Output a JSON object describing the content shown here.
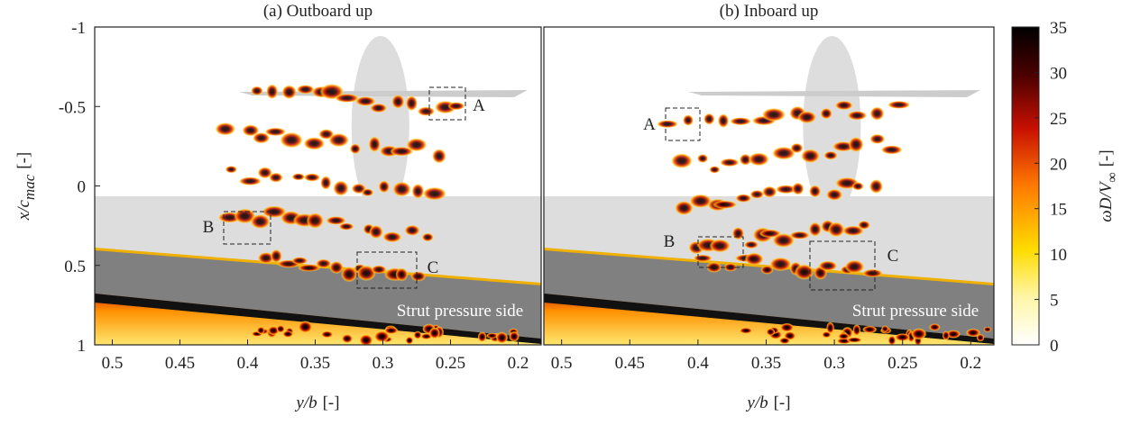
{
  "chart_data": [
    {
      "type": "field",
      "title": "(a) Outboard up",
      "xlim": [
        0.513,
        0.183
      ],
      "ylim": [
        -1,
        1
      ],
      "xticks": [
        0.5,
        0.45,
        0.4,
        0.35,
        0.3,
        0.25,
        0.2
      ],
      "yticks": [
        -1,
        -0.5,
        0,
        0.5,
        1
      ],
      "xlabel": "y/b",
      "xlabel_unit": "[-]",
      "ylabel": "x/c",
      "ylabel_sub": "mac",
      "ylabel_unit": "[-]",
      "annotations": [
        "A",
        "B",
        "C",
        "Strut pressure side"
      ]
    },
    {
      "type": "field",
      "title": "(b) Inboard up",
      "xlim": [
        0.513,
        0.183
      ],
      "ylim": [
        -1,
        1
      ],
      "xticks": [
        0.5,
        0.45,
        0.4,
        0.35,
        0.3,
        0.25,
        0.2
      ],
      "xlabel": "y/b",
      "xlabel_unit": "[-]",
      "annotations": [
        "A",
        "B",
        "C",
        "Strut pressure side"
      ]
    }
  ],
  "colorbar": {
    "label": "ωD/V",
    "label_sub": "∞",
    "label_unit": "[-]",
    "lim": [
      0,
      35
    ],
    "ticks": [
      0,
      5,
      10,
      15,
      20,
      25,
      30,
      35
    ]
  }
}
